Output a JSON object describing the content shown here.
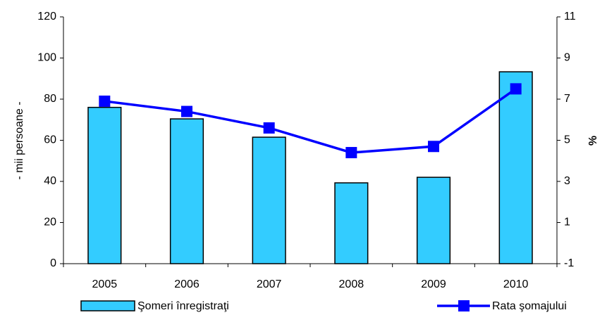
{
  "chart_data": {
    "type": "bar-line",
    "categories": [
      "2005",
      "2006",
      "2007",
      "2008",
      "2009",
      "2010"
    ],
    "series": [
      {
        "name": "Şomeri înregistraţi",
        "type": "bar",
        "color": "#33ccff",
        "values": [
          76,
          70.4,
          61.5,
          39.3,
          42,
          93.3
        ]
      },
      {
        "name": "Rata şomajului",
        "type": "line",
        "axis": "y2",
        "color": "#0000ff",
        "values": [
          6.9,
          6.4,
          5.6,
          4.4,
          4.7,
          7.5
        ]
      }
    ],
    "ylabel": "- mii persoane -",
    "y2label": "%",
    "ylim": [
      0,
      120
    ],
    "yticks": [
      0,
      20,
      40,
      60,
      80,
      100,
      120
    ],
    "y2lim": [
      -1,
      11
    ],
    "y2ticks": [
      -1,
      1,
      3,
      5,
      7,
      9,
      11
    ],
    "legend": "bottom"
  }
}
